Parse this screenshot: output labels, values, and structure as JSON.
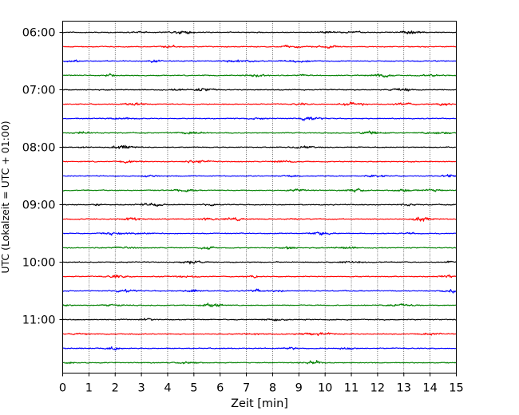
{
  "chart_data": {
    "type": "line",
    "xlabel": "Zeit  [min]",
    "ylabel": "UTC (Lokalzeit = UTC + 01:00)",
    "x_ticks": [
      "0",
      "1",
      "2",
      "3",
      "4",
      "5",
      "6",
      "7",
      "8",
      "9",
      "10",
      "11",
      "12",
      "13",
      "14",
      "15"
    ],
    "xlim": [
      0,
      15
    ],
    "y_ticks": [
      "06:00",
      "07:00",
      "08:00",
      "09:00",
      "10:00",
      "11:00"
    ],
    "trace_start": "06:00",
    "trace_end": "11:45",
    "trace_interval_min": 15,
    "trace_count": 24,
    "trace_colors": [
      "#000000",
      "#ff0000",
      "#0000ff",
      "#008000"
    ],
    "grid": "vertical dotted at each minute",
    "signal": "seismogram traces, small-amplitude noise"
  }
}
